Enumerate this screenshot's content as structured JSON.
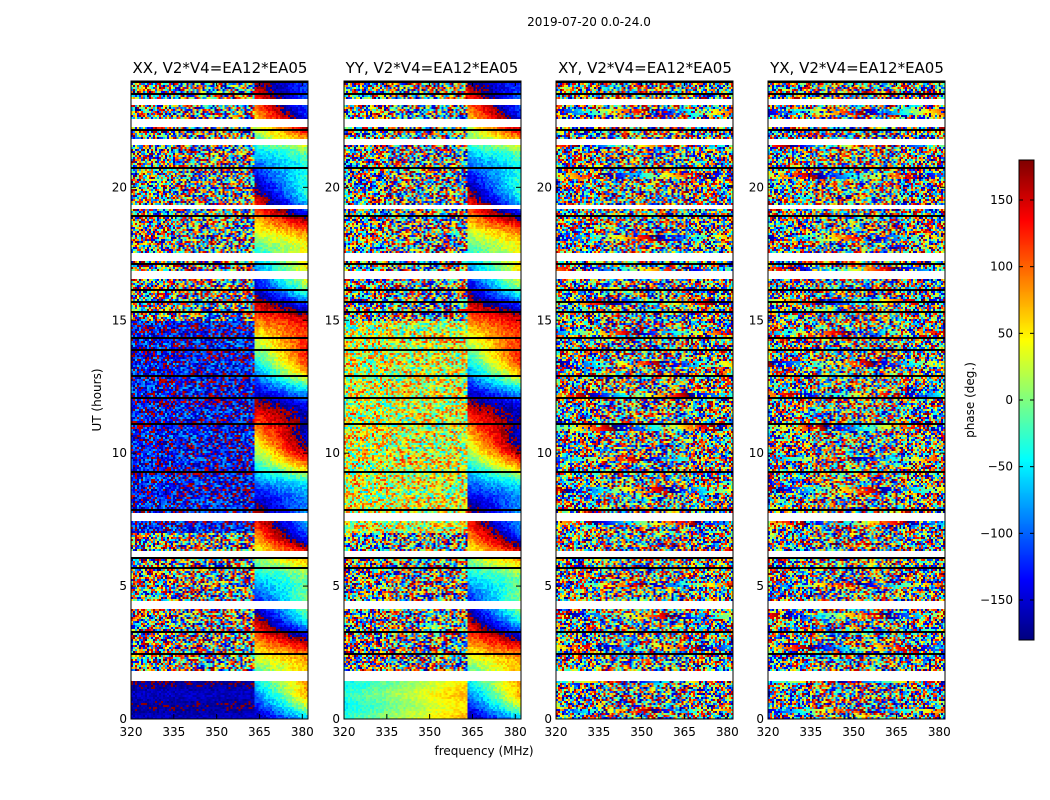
{
  "chart_data": {
    "type": "heatmap",
    "suptitle": "2019-07-20 0.0-24.0",
    "panels": [
      {
        "title": "XX, V2*V4=EA12*EA05",
        "style": "xx"
      },
      {
        "title": "YY, V2*V4=EA12*EA05",
        "style": "yy"
      },
      {
        "title": "XY, V2*V4=EA12*EA05",
        "style": "cross"
      },
      {
        "title": "YX, V2*V4=EA12*EA05",
        "style": "cross"
      }
    ],
    "x": {
      "label": "frequency (MHz)",
      "range": [
        320,
        382
      ],
      "ticks": [
        320,
        335,
        350,
        365,
        380
      ]
    },
    "y": {
      "label": "UT (hours)",
      "range": [
        0,
        24
      ],
      "ticks": [
        0,
        5,
        10,
        15,
        20
      ]
    },
    "colorbar": {
      "label": "phase (deg.)",
      "range": [
        -180,
        180
      ],
      "ticks": [
        -150,
        -100,
        -50,
        0,
        50,
        100,
        150
      ]
    },
    "colormap": "jet",
    "axis_color": "#000000",
    "flag_color": "#ffffff",
    "gap_hours": [
      [
        1.5,
        1.8
      ],
      [
        4.2,
        4.4
      ],
      [
        6.1,
        6.3
      ],
      [
        7.5,
        7.7
      ],
      [
        16.6,
        16.8
      ],
      [
        17.3,
        17.5
      ],
      [
        19.2,
        19.3
      ],
      [
        21.6,
        21.8
      ],
      [
        22.3,
        22.5
      ],
      [
        23.1,
        23.3
      ]
    ]
  }
}
